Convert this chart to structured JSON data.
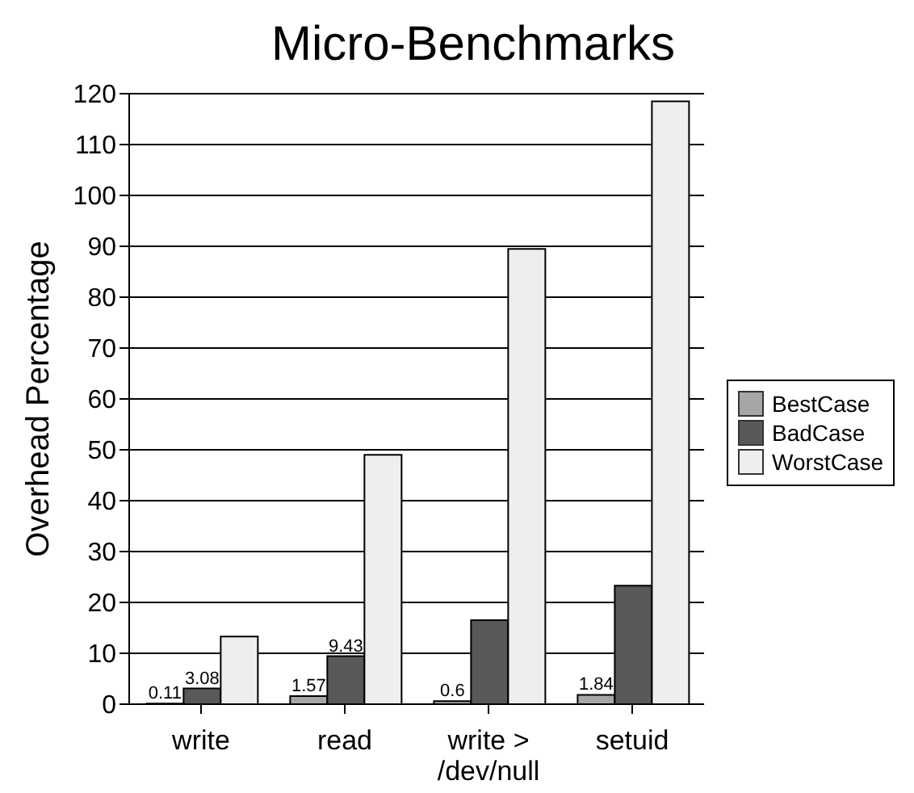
{
  "chart_data": {
    "type": "bar",
    "title": "Micro-Benchmarks",
    "ylabel": "Overhead Percentage",
    "categories": [
      "write",
      "read",
      "write > /dev/null",
      "setuid"
    ],
    "series": [
      {
        "name": "BestCase",
        "color": "#a6a6a6",
        "values": [
          0.11,
          1.57,
          0.6,
          1.84
        ],
        "value_labels": [
          "0.11",
          "1.57",
          "0.6",
          "1.84"
        ]
      },
      {
        "name": "BadCase",
        "color": "#595959",
        "values": [
          3.08,
          9.43,
          16.5,
          23.3
        ],
        "value_labels": [
          "3.08",
          "9.43",
          null,
          null
        ]
      },
      {
        "name": "WorstCase",
        "color": "#eeeeee",
        "values": [
          13.3,
          49,
          89.5,
          118.5
        ]
      }
    ],
    "ylim": [
      0,
      120
    ],
    "yticks": [
      0,
      10,
      20,
      30,
      40,
      50,
      60,
      70,
      80,
      90,
      100,
      110,
      120
    ],
    "grid": "y",
    "legend": "right"
  }
}
